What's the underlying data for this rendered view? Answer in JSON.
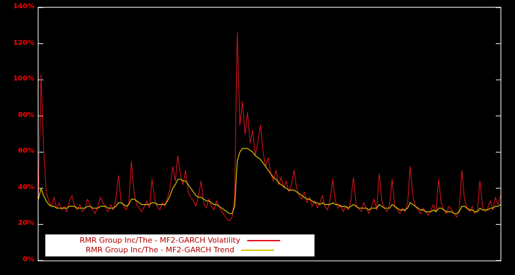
{
  "chart_data": {
    "type": "line",
    "title": "",
    "xlabel": "",
    "ylabel": "",
    "ylim": [
      0,
      140
    ],
    "grid": false,
    "legend_position": "bottom-left-inside",
    "yticks": [
      "0%",
      "20%",
      "40%",
      "60%",
      "80%",
      "100%",
      "120%",
      "140%"
    ],
    "ytick_values": [
      0,
      20,
      40,
      60,
      80,
      100,
      120,
      140
    ],
    "colors": {
      "background": "#000000",
      "frame": "#ffffff",
      "tick_label": "#ff0000",
      "legend_background": "#ffffff",
      "legend_text": "#b00000"
    },
    "series": [
      {
        "name": "RMR Group Inc/The - MF2-GARCH Volatility",
        "color": "#e8131d",
        "values": [
          36,
          103,
          62,
          38,
          33,
          30,
          35,
          29,
          32,
          28,
          30,
          27,
          33,
          36,
          30,
          28,
          31,
          27,
          29,
          34,
          31,
          28,
          26,
          30,
          35,
          32,
          29,
          27,
          31,
          28,
          34,
          47,
          33,
          30,
          28,
          32,
          55,
          38,
          31,
          29,
          27,
          30,
          33,
          29,
          45,
          34,
          30,
          28,
          32,
          30,
          35,
          40,
          52,
          44,
          58,
          48,
          42,
          50,
          38,
          35,
          33,
          30,
          36,
          44,
          32,
          29,
          34,
          30,
          28,
          33,
          30,
          27,
          25,
          23,
          22,
          24,
          35,
          126,
          75,
          88,
          70,
          82,
          65,
          72,
          58,
          66,
          75,
          60,
          52,
          57,
          48,
          44,
          50,
          42,
          46,
          40,
          44,
          38,
          42,
          50,
          40,
          36,
          34,
          38,
          32,
          35,
          30,
          33,
          29,
          32,
          36,
          30,
          28,
          34,
          45,
          33,
          29,
          31,
          27,
          30,
          28,
          33,
          46,
          31,
          29,
          27,
          32,
          29,
          26,
          30,
          34,
          28,
          48,
          33,
          29,
          27,
          31,
          45,
          30,
          28,
          26,
          29,
          27,
          32,
          52,
          36,
          30,
          28,
          26,
          29,
          27,
          25,
          28,
          31,
          27,
          45,
          32,
          28,
          26,
          30,
          28,
          26,
          24,
          28,
          50,
          34,
          29,
          27,
          30,
          26,
          28,
          44,
          30,
          27,
          29,
          33,
          28,
          35,
          31,
          36
        ]
      },
      {
        "name": "RMR Group Inc/The - MF2-GARCH Trend",
        "color": "#d8c800",
        "values": [
          34,
          40,
          36,
          33,
          31,
          30,
          30,
          29,
          29,
          29,
          29,
          29,
          30,
          30,
          30,
          29,
          29,
          29,
          29,
          30,
          30,
          29,
          29,
          29,
          30,
          30,
          30,
          29,
          29,
          29,
          30,
          32,
          32,
          31,
          30,
          31,
          34,
          34,
          33,
          32,
          31,
          31,
          31,
          31,
          32,
          32,
          31,
          31,
          31,
          31,
          33,
          36,
          40,
          42,
          45,
          45,
          44,
          44,
          42,
          40,
          38,
          36,
          35,
          35,
          34,
          33,
          33,
          32,
          31,
          31,
          30,
          29,
          28,
          27,
          26,
          26,
          30,
          55,
          60,
          62,
          62,
          62,
          61,
          60,
          58,
          57,
          56,
          54,
          52,
          50,
          48,
          46,
          45,
          43,
          42,
          41,
          40,
          39,
          39,
          39,
          38,
          37,
          36,
          35,
          34,
          34,
          33,
          32,
          32,
          31,
          32,
          31,
          31,
          31,
          32,
          31,
          31,
          30,
          30,
          30,
          29,
          30,
          31,
          30,
          29,
          29,
          29,
          29,
          28,
          29,
          29,
          29,
          31,
          30,
          29,
          29,
          29,
          31,
          30,
          29,
          28,
          28,
          28,
          29,
          32,
          31,
          30,
          29,
          28,
          28,
          27,
          27,
          27,
          28,
          27,
          29,
          29,
          28,
          27,
          27,
          27,
          26,
          26,
          27,
          30,
          30,
          29,
          28,
          28,
          27,
          27,
          29,
          28,
          28,
          28,
          29,
          29,
          30,
          30,
          31
        ]
      }
    ]
  }
}
